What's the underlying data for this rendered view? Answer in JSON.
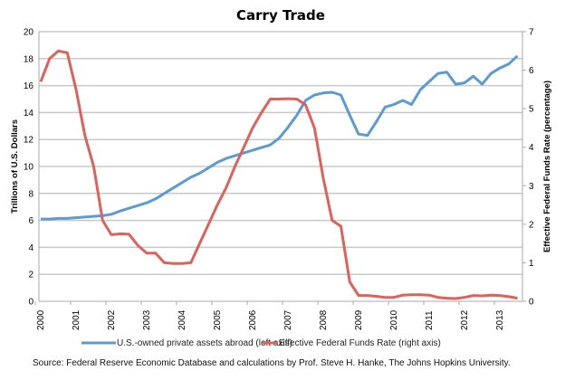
{
  "chart_data": {
    "type": "line",
    "title": "Carry Trade",
    "ylabel": "Trillions of U.S. Dollars",
    "ylabel_right": "Effective Federal Funds Rate (percentage)",
    "ylim": [
      0,
      20
    ],
    "ylim_right": [
      0,
      7
    ],
    "yticks": [
      "0",
      "2",
      "4",
      "6",
      "8",
      "10",
      "12",
      "14",
      "16",
      "18",
      "20"
    ],
    "yticks_right": [
      "0",
      "1",
      "2",
      "3",
      "4",
      "5",
      "6",
      "7"
    ],
    "xticks": [
      "2000",
      "2001",
      "2002",
      "2003",
      "2004",
      "2005",
      "2006",
      "2007",
      "2008",
      "2009",
      "2010",
      "2011",
      "2012",
      "2013"
    ],
    "grid": true,
    "legend_position": "bottom",
    "x": [
      2000,
      2000.25,
      2000.5,
      2000.75,
      2001,
      2001.25,
      2001.5,
      2001.75,
      2002,
      2002.25,
      2002.5,
      2002.75,
      2003,
      2003.25,
      2003.5,
      2003.75,
      2004,
      2004.25,
      2004.5,
      2004.75,
      2005,
      2005.25,
      2005.5,
      2005.75,
      2006,
      2006.25,
      2006.5,
      2006.75,
      2007,
      2007.25,
      2007.5,
      2007.75,
      2008,
      2008.25,
      2008.5,
      2008.75,
      2009,
      2009.25,
      2009.5,
      2009.75,
      2010,
      2010.25,
      2010.5,
      2010.75,
      2011,
      2011.25,
      2011.5,
      2011.75,
      2012,
      2012.25,
      2012.5,
      2012.75,
      2013,
      2013.25,
      2013.5
    ],
    "series": [
      {
        "name": "U.S.-owned private assets abroad (left axis)",
        "axis": "left",
        "color": "#5b9bd5",
        "values": [
          6.1,
          6.1,
          6.15,
          6.15,
          6.2,
          6.25,
          6.3,
          6.35,
          6.45,
          6.7,
          6.9,
          7.1,
          7.3,
          7.6,
          8.0,
          8.4,
          8.8,
          9.2,
          9.5,
          9.9,
          10.3,
          10.6,
          10.8,
          11.0,
          11.2,
          11.4,
          11.6,
          12.1,
          12.9,
          13.8,
          14.9,
          15.3,
          15.45,
          15.5,
          15.3,
          13.8,
          12.4,
          12.3,
          13.3,
          14.4,
          14.6,
          14.9,
          14.6,
          15.7,
          16.3,
          16.9,
          17.0,
          16.1,
          16.2,
          16.7,
          16.1,
          16.9,
          17.3,
          17.6,
          18.2
        ]
      },
      {
        "name": "Effective Federal Funds Rate (right axis)",
        "axis": "right",
        "color": "#e0605a",
        "values": [
          5.7,
          6.3,
          6.5,
          6.45,
          5.5,
          4.3,
          3.5,
          2.1,
          1.73,
          1.75,
          1.74,
          1.45,
          1.25,
          1.25,
          1.0,
          0.98,
          0.98,
          1.0,
          1.5,
          2.0,
          2.5,
          2.95,
          3.5,
          4.0,
          4.5,
          4.9,
          5.25,
          5.25,
          5.26,
          5.25,
          5.1,
          4.5,
          3.2,
          2.1,
          1.95,
          0.5,
          0.15,
          0.15,
          0.13,
          0.1,
          0.1,
          0.16,
          0.17,
          0.17,
          0.16,
          0.1,
          0.08,
          0.07,
          0.1,
          0.15,
          0.14,
          0.16,
          0.15,
          0.12,
          0.08
        ]
      }
    ],
    "source": "Source: Federal Reserve Economic Database and calculations by Prof. Steve H. Hanke, The Johns Hopkins University."
  }
}
